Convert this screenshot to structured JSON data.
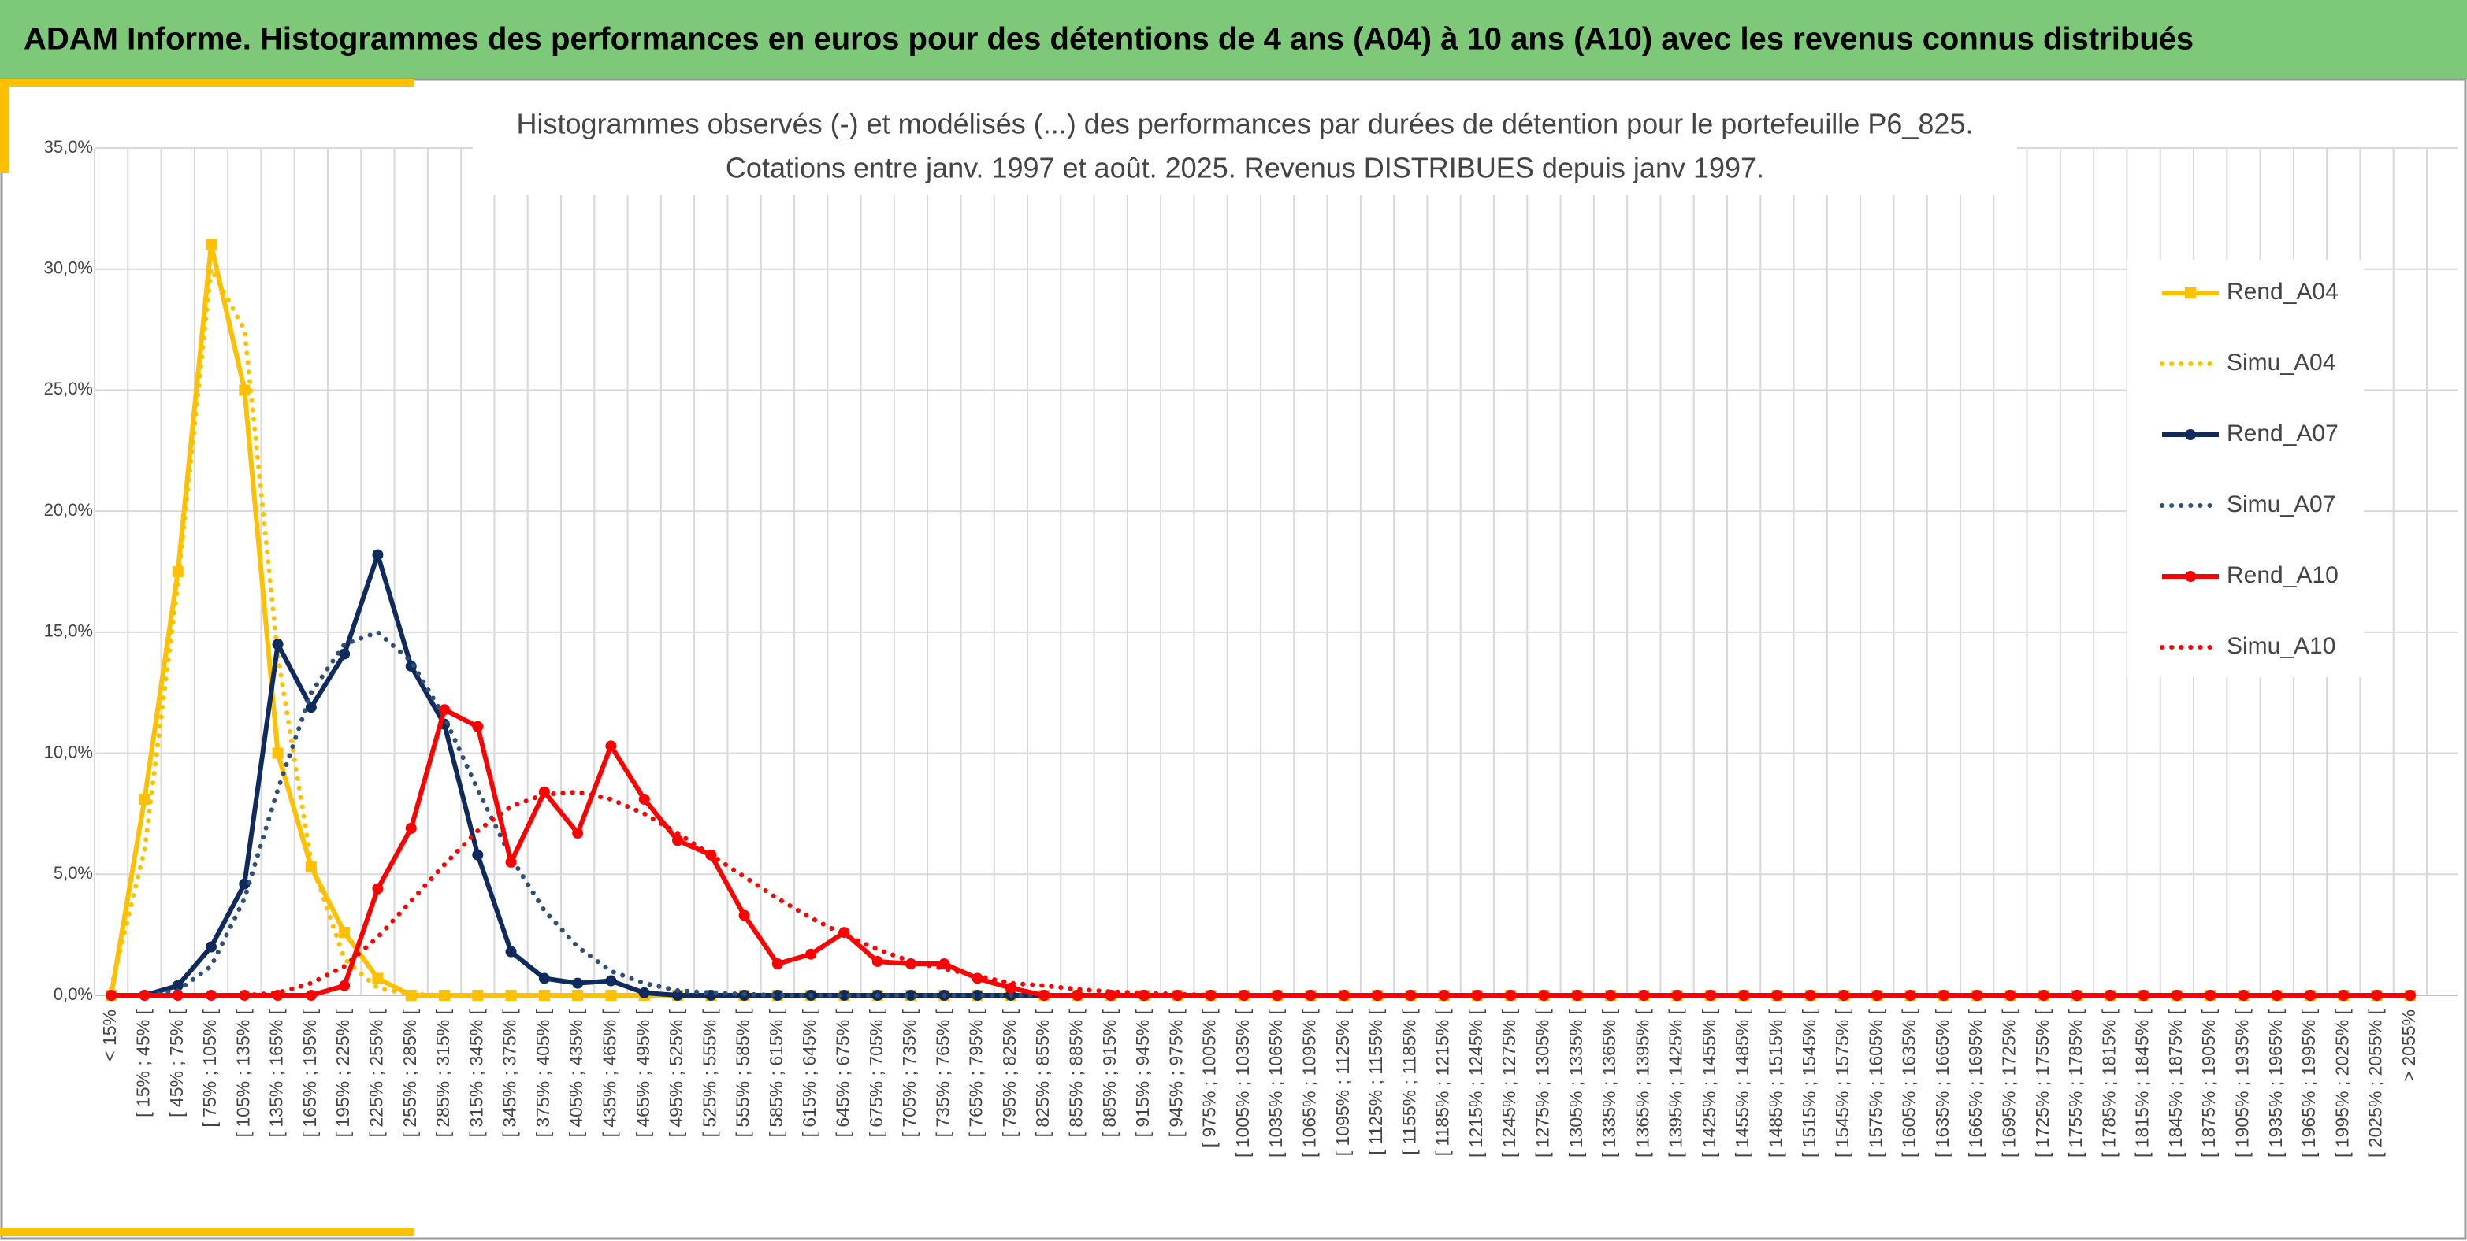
{
  "header": {
    "title": "ADAM Informe. Histogrammes des performances en euros pour des détentions de 4 ans (A04) à 10 ans (A10) avec les revenus connus distribués"
  },
  "chart_data": {
    "type": "line",
    "title": "Histogrammes observés (-) et modélisés (...) des performances par durées de détention pour le portefeuille P6_825.",
    "subtitle": "Cotations entre janv. 1997 et août. 2025. Revenus DISTRIBUES depuis janv 1997.",
    "categories": [
      "< 15%",
      "[ 15% ; 45% [",
      "[ 45% ; 75% [",
      "[ 75% ; 105% [",
      "[ 105% ; 135% [",
      "[ 135% ; 165% [",
      "[ 165% ; 195% [",
      "[ 195% ; 225% [",
      "[ 225% ; 255% [",
      "[ 255% ; 285% [",
      "[ 285% ; 315% [",
      "[ 315% ; 345% [",
      "[ 345% ; 375% [",
      "[ 375% ; 405% [",
      "[ 405% ; 435% [",
      "[ 435% ; 465% [",
      "[ 465% ; 495% [",
      "[ 495% ; 525% [",
      "[ 525% ; 555% [",
      "[ 555% ; 585% [",
      "[ 585% ; 615% [",
      "[ 615% ; 645% [",
      "[ 645% ; 675% [",
      "[ 675% ; 705% [",
      "[ 705% ; 735% [",
      "[ 735% ; 765% [",
      "[ 765% ; 795% [",
      "[ 795% ; 825% [",
      "[ 825% ; 855% [",
      "[ 855% ; 885% [",
      "[ 885% ; 915% [",
      "[ 915% ; 945% [",
      "[ 945% ; 975% [",
      "[ 975% ; 1005% [",
      "[ 1005% ; 1035% [",
      "[ 1035% ; 1065% [",
      "[ 1065% ; 1095% [",
      "[ 1095% ; 1125% [",
      "[ 1125% ; 1155% [",
      "[ 1155% ; 1185% [",
      "[ 1185% ; 1215% [",
      "[ 1215% ; 1245% [",
      "[ 1245% ; 1275% [",
      "[ 1275% ; 1305% [",
      "[ 1305% ; 1335% [",
      "[ 1335% ; 1365% [",
      "[ 1365% ; 1395% [",
      "[ 1395% ; 1425% [",
      "[ 1425% ; 1455% [",
      "[ 1455% ; 1485% [",
      "[ 1485% ; 1515% [",
      "[ 1515% ; 1545% [",
      "[ 1545% ; 1575% [",
      "[ 1575% ; 1605% [",
      "[ 1605% ; 1635% [",
      "[ 1635% ; 1665% [",
      "[ 1665% ; 1695% [",
      "[ 1695% ; 1725% [",
      "[ 1725% ; 1755% [",
      "[ 1755% ; 1785% [",
      "[ 1785% ; 1815% [",
      "[ 1815% ; 1845% [",
      "[ 1845% ; 1875% [",
      "[ 1875% ; 1905% [",
      "[ 1905% ; 1935% [",
      "[ 1935% ; 1965% [",
      "[ 1965% ; 1995% [",
      "[ 1995% ; 2025% [",
      "[ 2025% ; 2055% [",
      "> 2055%"
    ],
    "series": [
      {
        "name": "Rend_A04",
        "color": "#ffc000",
        "style": "solid",
        "marker": "square",
        "values": [
          0,
          8.1,
          17.5,
          31,
          25,
          10,
          5.3,
          2.6,
          0.7,
          0,
          0,
          0,
          0,
          0,
          0,
          0,
          0,
          0,
          0,
          0,
          0,
          0,
          0,
          0,
          0,
          0,
          0,
          0,
          0,
          0,
          0,
          0,
          0,
          0,
          0,
          0,
          0,
          0,
          0,
          0,
          0,
          0,
          0,
          0,
          0,
          0,
          0,
          0,
          0,
          0,
          0,
          0,
          0,
          0,
          0,
          0,
          0,
          0,
          0,
          0,
          0,
          0,
          0,
          0,
          0,
          0,
          0,
          0,
          0,
          0
        ]
      },
      {
        "name": "Simu_A04",
        "color": "#ffc000",
        "style": "dotted",
        "marker": null,
        "values": [
          0.3,
          6,
          17,
          30,
          27.5,
          14,
          5.5,
          1.5,
          0.3,
          0.05,
          0,
          0,
          0,
          0,
          0,
          0,
          0,
          0,
          0,
          0,
          0,
          0,
          0,
          0,
          0,
          0,
          0,
          0,
          0,
          0,
          0,
          0,
          0,
          0,
          0,
          0,
          0,
          0,
          0,
          0,
          0,
          0,
          0,
          0,
          0,
          0,
          0,
          0,
          0,
          0,
          0,
          0,
          0,
          0,
          0,
          0,
          0,
          0,
          0,
          0,
          0,
          0,
          0,
          0,
          0,
          0,
          0,
          0,
          0,
          0
        ]
      },
      {
        "name": "Rend_A07",
        "color": "#0f2a5c",
        "style": "solid",
        "marker": "circle",
        "values": [
          0,
          0,
          0.4,
          2,
          4.6,
          14.5,
          11.9,
          14.1,
          18.2,
          13.6,
          11.2,
          5.8,
          1.8,
          0.7,
          0.5,
          0.6,
          0.1,
          0,
          0,
          0,
          0,
          0,
          0,
          0,
          0,
          0,
          0,
          0,
          0,
          0,
          0,
          0,
          0,
          0,
          0,
          0,
          0,
          0,
          0,
          0,
          0,
          0,
          0,
          0,
          0,
          0,
          0,
          0,
          0,
          0,
          0,
          0,
          0,
          0,
          0,
          0,
          0,
          0,
          0,
          0,
          0,
          0,
          0,
          0,
          0,
          0,
          0,
          0,
          0,
          0
        ]
      },
      {
        "name": "Simu_A07",
        "color": "#2e4f7a",
        "style": "dotted",
        "marker": null,
        "values": [
          0,
          0,
          0.2,
          1.2,
          4,
          8.5,
          12.5,
          14.5,
          15,
          13.8,
          11.5,
          8.5,
          5.7,
          3.5,
          2,
          1,
          0.5,
          0.2,
          0.1,
          0.05,
          0,
          0,
          0,
          0,
          0,
          0,
          0,
          0,
          0,
          0,
          0,
          0,
          0,
          0,
          0,
          0,
          0,
          0,
          0,
          0,
          0,
          0,
          0,
          0,
          0,
          0,
          0,
          0,
          0,
          0,
          0,
          0,
          0,
          0,
          0,
          0,
          0,
          0,
          0,
          0,
          0,
          0,
          0,
          0,
          0,
          0,
          0,
          0,
          0,
          0
        ]
      },
      {
        "name": "Rend_A10",
        "color": "#ff0000",
        "style": "solid",
        "marker": "circle",
        "values": [
          0,
          0,
          0,
          0,
          0,
          0,
          0,
          0.4,
          4.4,
          6.9,
          11.8,
          11.1,
          5.5,
          8.4,
          6.7,
          10.3,
          8.1,
          6.4,
          5.8,
          3.3,
          1.3,
          1.7,
          2.6,
          1.4,
          1.3,
          1.3,
          0.7,
          0.3,
          0,
          0,
          0,
          0,
          0,
          0,
          0,
          0,
          0,
          0,
          0,
          0,
          0,
          0,
          0,
          0,
          0,
          0,
          0,
          0,
          0,
          0,
          0,
          0,
          0,
          0,
          0,
          0,
          0,
          0,
          0,
          0,
          0,
          0,
          0,
          0,
          0,
          0,
          0,
          0,
          0,
          0
        ]
      },
      {
        "name": "Simu_A10",
        "color": "#ff0000",
        "style": "dotted",
        "marker": null,
        "values": [
          0,
          0,
          0,
          0,
          0,
          0.1,
          0.5,
          1.2,
          2.4,
          3.9,
          5.4,
          6.8,
          7.8,
          8.3,
          8.4,
          8.1,
          7.5,
          6.7,
          5.8,
          4.9,
          4,
          3.2,
          2.5,
          1.9,
          1.4,
          1.1,
          0.8,
          0.5,
          0.4,
          0.25,
          0.15,
          0.1,
          0.05,
          0,
          0,
          0,
          0,
          0,
          0,
          0,
          0,
          0,
          0,
          0,
          0,
          0,
          0,
          0,
          0,
          0,
          0,
          0,
          0,
          0,
          0,
          0,
          0,
          0,
          0,
          0,
          0,
          0,
          0,
          0,
          0,
          0,
          0,
          0,
          0,
          0
        ]
      }
    ],
    "ylim": [
      0,
      35
    ],
    "yticks": [
      {
        "value": 0,
        "label": "0,0%"
      },
      {
        "value": 5,
        "label": "5,0%"
      },
      {
        "value": 10,
        "label": "10,0%"
      },
      {
        "value": 15,
        "label": "15,0%"
      },
      {
        "value": 20,
        "label": "20,0%"
      },
      {
        "value": 25,
        "label": "25,0%"
      },
      {
        "value": 30,
        "label": "30,0%"
      },
      {
        "value": 35,
        "label": "35,0%"
      }
    ],
    "grid": true,
    "legend": "right"
  }
}
